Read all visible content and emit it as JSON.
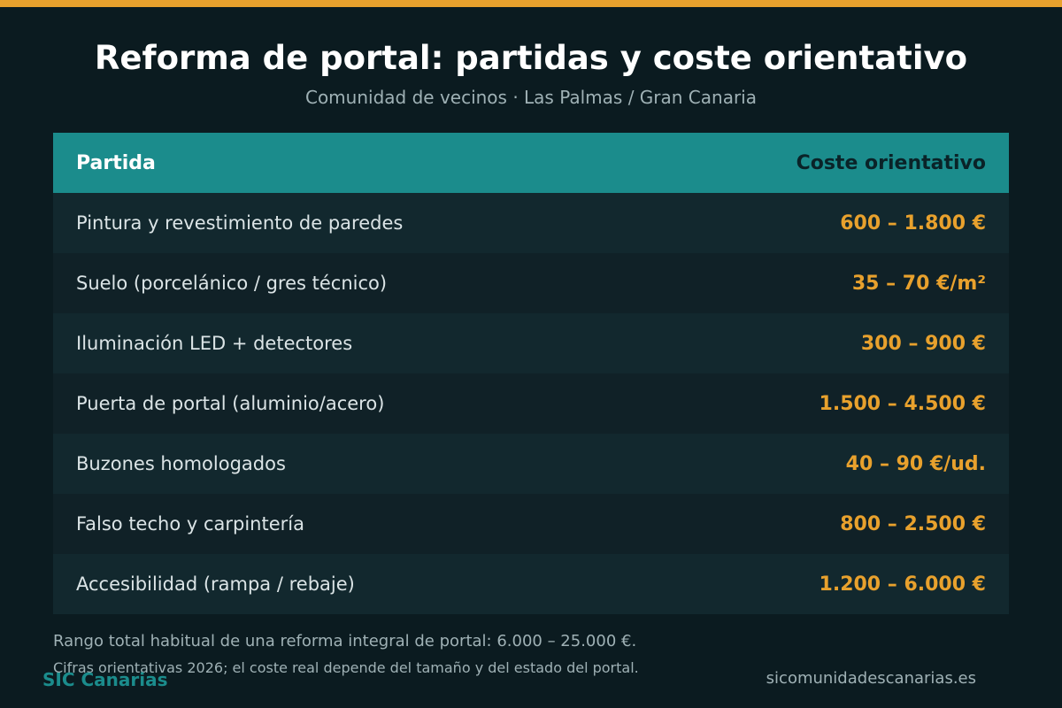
{
  "header": {
    "title": "Reforma de portal: partidas y coste orientativo",
    "subtitle": "Comunidad de vecinos · Las Palmas / Gran Canaria"
  },
  "table": {
    "columns": [
      "Partida",
      "Coste orientativo"
    ],
    "rows": [
      {
        "item": "Pintura y revestimiento de paredes",
        "cost": "600 – 1.800 €"
      },
      {
        "item": "Suelo (porcelánico / gres técnico)",
        "cost": "35 – 70 €/m²"
      },
      {
        "item": "Iluminación LED + detectores",
        "cost": "300 – 900 €"
      },
      {
        "item": "Puerta de portal (aluminio/acero)",
        "cost": "1.500 – 4.500 €"
      },
      {
        "item": "Buzones homologados",
        "cost": "40 – 90 €/ud."
      },
      {
        "item": "Falso techo y carpintería",
        "cost": "800 – 2.500 €"
      },
      {
        "item": "Accesibilidad (rampa / rebaje)",
        "cost": "1.200 – 6.000 €"
      }
    ]
  },
  "footer": {
    "note": "Rango total habitual de una reforma integral de portal: 6.000 – 25.000 €.",
    "disclaimer": "Cifras orientativas 2026; el coste real depende del tamaño y del estado del portal.",
    "brand": "SIC Canarias",
    "site": "sicomunidadescanarias.es"
  },
  "colors": {
    "background": "#0b1b20",
    "accent": "#e8a12d",
    "teal": "#1b8c8c"
  }
}
